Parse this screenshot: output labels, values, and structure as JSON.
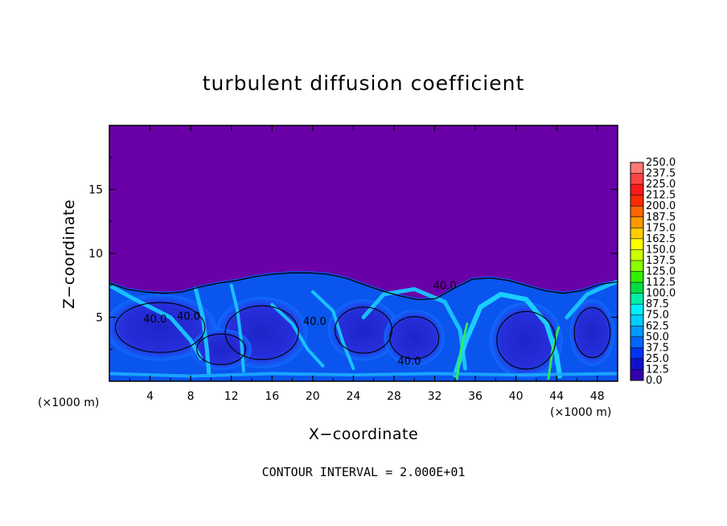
{
  "chart_data": {
    "type": "heatmap",
    "title": "turbulent diffusion coefficient",
    "xlabel": "X−coordinate",
    "ylabel": "Z−coordinate",
    "x_unit_left": "(×1000 m)",
    "x_unit_right": "(×1000 m)",
    "xlim": [
      0,
      50
    ],
    "ylim": [
      0,
      20
    ],
    "x_ticks": [
      4,
      8,
      12,
      16,
      20,
      24,
      28,
      32,
      36,
      40,
      44,
      48
    ],
    "y_ticks": [
      5,
      10,
      15
    ],
    "contour_interval_text": "CONTOUR INTERVAL = 2.000E+01",
    "contour_labels": [
      {
        "text": "40.0",
        "x": 4.5,
        "z": 4.6
      },
      {
        "text": "40.0",
        "x": 7.8,
        "z": 4.8
      },
      {
        "text": "40.0",
        "x": 20.2,
        "z": 4.4
      },
      {
        "text": "40.0",
        "x": 33.0,
        "z": 7.2
      },
      {
        "text": "40.0",
        "x": 29.5,
        "z": 1.3
      }
    ],
    "colorbar": {
      "labels": [
        "250.0",
        "237.5",
        "225.0",
        "212.5",
        "200.0",
        "187.5",
        "175.0",
        "162.5",
        "150.0",
        "137.5",
        "125.0",
        "112.5",
        "100.0",
        "87.5",
        "75.0",
        "62.5",
        "50.0",
        "37.5",
        "25.0",
        "12.5",
        "0.0"
      ],
      "colors": [
        "#ff7777",
        "#ff4444",
        "#ff1a1a",
        "#ff2a00",
        "#ff6600",
        "#ff9900",
        "#ffcc00",
        "#ffff00",
        "#ccff00",
        "#88ff00",
        "#33ee00",
        "#00dd44",
        "#00eeaa",
        "#00eeff",
        "#00ccff",
        "#0099ff",
        "#0066ff",
        "#0033ee",
        "#1111cc",
        "#3300aa",
        "#6600aa"
      ]
    },
    "background_value": 0.0,
    "turbulent_layer_top_z": [
      7.8,
      7.3,
      7.1,
      7.0,
      7.1,
      7.5,
      7.8,
      8.0,
      8.3,
      8.5,
      8.6,
      8.6,
      8.5,
      8.2,
      7.7,
      7.2,
      6.8,
      6.5,
      6.6,
      7.4,
      8.1,
      8.2,
      8.0,
      7.6,
      7.2,
      7.0,
      7.2,
      7.7,
      7.9
    ]
  }
}
